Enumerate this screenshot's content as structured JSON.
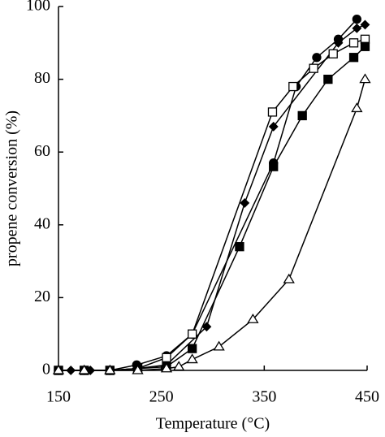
{
  "chart_data": {
    "type": "line",
    "x_label": "Temperature (°C)",
    "y_label": "propene conversion (%)",
    "xlim": [
      150,
      450
    ],
    "xticks": [
      150,
      250,
      350,
      450
    ],
    "ylim": [
      0,
      100
    ],
    "yticks": [
      0,
      20,
      40,
      60,
      80,
      100
    ],
    "grid": false,
    "series": [
      {
        "color": "#000000",
        "marker": "circle",
        "filled": true,
        "x": [
          150,
          175,
          200,
          226,
          255,
          280,
          359,
          381,
          401,
          422,
          440
        ],
        "values": [
          0,
          0,
          0,
          1.5,
          4,
          10,
          57,
          78,
          86,
          91,
          96.5
        ]
      },
      {
        "color": "#000000",
        "marker": "diamond",
        "filled": true,
        "x": [
          162,
          181,
          200,
          226,
          255,
          294,
          331,
          359,
          422,
          440,
          448
        ],
        "values": [
          0,
          0,
          0,
          0.5,
          1.5,
          12,
          46,
          67,
          90,
          94,
          95
        ]
      },
      {
        "color": "#000000",
        "marker": "square",
        "filled": false,
        "x": [
          150,
          175,
          200,
          227,
          255,
          280,
          358,
          378,
          398,
          417,
          437,
          448
        ],
        "values": [
          0,
          0,
          0,
          0.5,
          3.5,
          10,
          71,
          78,
          83,
          87,
          90,
          91
        ]
      },
      {
        "color": "#000000",
        "marker": "square",
        "filled": true,
        "x": [
          150,
          175,
          200,
          227,
          255,
          280,
          326,
          359,
          387,
          412,
          437,
          448
        ],
        "values": [
          0,
          0,
          0,
          0.5,
          1,
          6,
          34,
          56,
          70,
          80,
          86,
          89
        ]
      },
      {
        "color": "#000000",
        "marker": "triangle",
        "filled": false,
        "x": [
          150,
          175,
          200,
          227,
          255,
          267,
          280,
          306,
          339,
          374,
          440,
          448
        ],
        "values": [
          0,
          0,
          0,
          0,
          0.5,
          1,
          3,
          6.5,
          14,
          25,
          72,
          80
        ]
      }
    ]
  }
}
